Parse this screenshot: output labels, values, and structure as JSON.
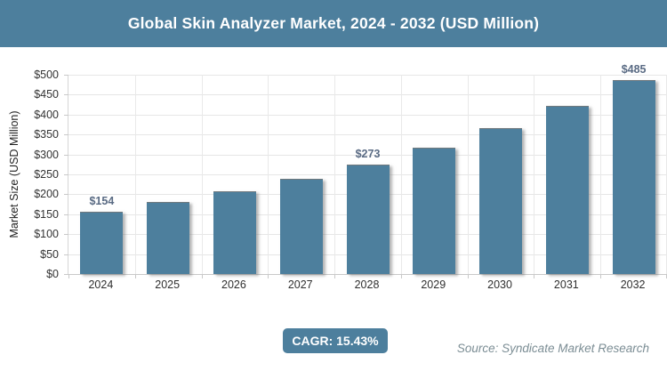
{
  "header": {
    "title": "Global Skin Analyzer Market, 2024 - 2032 (USD Million)"
  },
  "chart_data": {
    "type": "bar",
    "title": "Global Skin Analyzer Market, 2024 - 2032 (USD Million)",
    "categories": [
      "2024",
      "2025",
      "2026",
      "2027",
      "2028",
      "2029",
      "2030",
      "2031",
      "2032"
    ],
    "values": [
      154,
      178,
      205,
      237,
      273,
      315,
      364,
      420,
      485
    ],
    "value_labels": [
      "$154",
      "",
      "",
      "",
      "$273",
      "",
      "",
      "",
      "$485"
    ],
    "xlabel": "",
    "ylabel": "Market Size (USD Million)",
    "ylim": [
      0,
      500
    ],
    "ytick_step": 50,
    "ytick_labels": [
      "$0",
      "$50",
      "$100",
      "$150",
      "$200",
      "$250",
      "$300",
      "$350",
      "$400",
      "$450",
      "$500"
    ],
    "grid": true,
    "legend": "none",
    "bar_color": "#4d7f9d",
    "value_label_color": "#5a6b84",
    "cagr": "15.43%"
  },
  "footer": {
    "cagr_label": "CAGR: 15.43%",
    "source": "Source: Syndicate Market Research"
  }
}
